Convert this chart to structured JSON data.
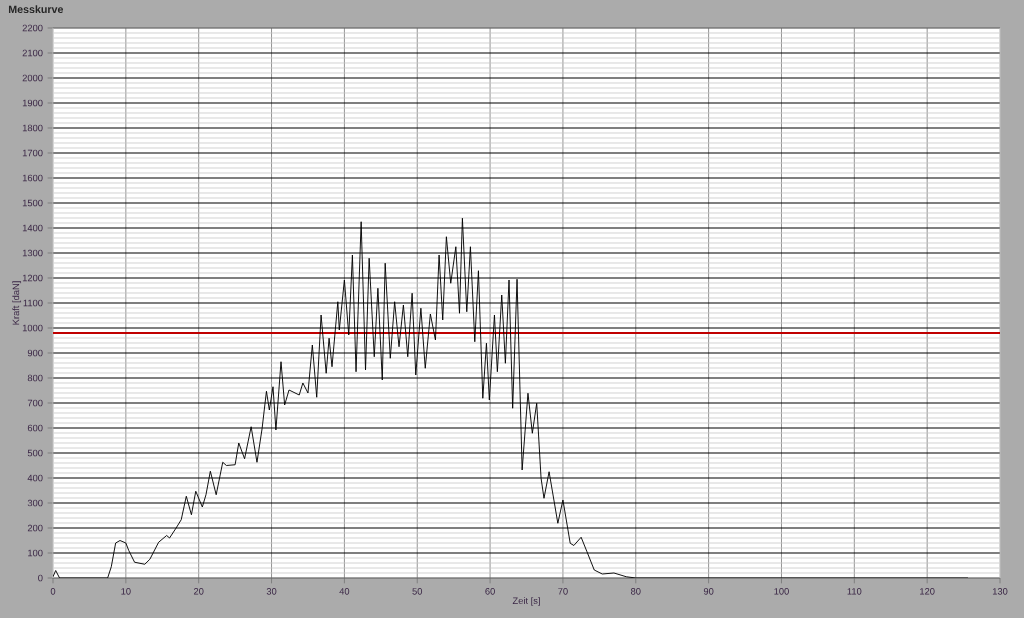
{
  "chart_data": {
    "type": "line",
    "title": "Messkurve",
    "xlabel": "Zeit [s]",
    "ylabel": "Kraft [daN]",
    "xlim": [
      0,
      130
    ],
    "ylim": [
      0,
      2200
    ],
    "xticks": [
      0,
      10,
      20,
      30,
      40,
      50,
      60,
      70,
      80,
      90,
      100,
      110,
      120,
      130
    ],
    "yticks": [
      0,
      100,
      200,
      300,
      400,
      500,
      600,
      700,
      800,
      900,
      1000,
      1100,
      1200,
      1300,
      1400,
      1500,
      1600,
      1700,
      1800,
      1900,
      2000,
      2100,
      2200
    ],
    "grid": true,
    "ref_lines": [
      {
        "axis": "y",
        "value": 980,
        "color": "#c00000"
      }
    ],
    "series": [
      {
        "color": "#000000",
        "x": [
          0,
          0.37,
          0.9,
          7.5,
          8.0,
          8.6,
          9.2,
          10,
          10.4,
          11.2,
          12.6,
          13.3,
          14.5,
          15.6,
          16,
          16.9,
          17.6,
          18.3,
          19,
          19.6,
          20.5,
          21,
          21.6,
          22.4,
          23.3,
          23.8,
          25,
          25.5,
          26.3,
          27.2,
          28,
          28.7,
          29.3,
          29.7,
          30.2,
          30.6,
          31.3,
          31.8,
          32.4,
          33.8,
          34.3,
          35,
          35.6,
          36.2,
          36.8,
          37.5,
          37.9,
          38.3,
          39.1,
          39.3,
          40,
          40.6,
          41.1,
          41.6,
          42.3,
          42.9,
          43.4,
          44.1,
          44.6,
          45.2,
          45.6,
          46.3,
          46.9,
          47.5,
          48.1,
          48.7,
          49.3,
          49.8,
          50.5,
          51.1,
          51.8,
          52.5,
          53,
          53.5,
          54,
          54.6,
          55.3,
          55.8,
          56.2,
          56.8,
          57.3,
          57.9,
          58.4,
          59,
          59.5,
          59.9,
          60.6,
          61,
          61.6,
          62.1,
          62.6,
          63.1,
          63.7,
          64.4,
          65.2,
          65.8,
          66.4,
          67,
          67.4,
          68.1,
          69.3,
          70,
          71,
          71.5,
          72.5,
          73.3,
          74.3,
          75.4,
          77,
          78.7,
          80,
          90,
          100,
          110,
          120,
          125.6
        ],
        "values": [
          5,
          30,
          0,
          0,
          45,
          140,
          150,
          140,
          110,
          63,
          55,
          75,
          143,
          170,
          160,
          200,
          233,
          327,
          253,
          347,
          284,
          333,
          427,
          333,
          463,
          450,
          453,
          540,
          477,
          605,
          463,
          597,
          747,
          672,
          765,
          592,
          865,
          692,
          752,
          732,
          780,
          740,
          932,
          723,
          1052,
          819,
          959,
          845,
          1105,
          992,
          1192,
          972,
          1292,
          825,
          1425,
          832,
          1279,
          885,
          1159,
          792,
          1259,
          879,
          1105,
          925,
          1092,
          885,
          1139,
          812,
          1079,
          839,
          1056,
          952,
          1292,
          1032,
          1365,
          1179,
          1325,
          1059,
          1439,
          1065,
          1325,
          945,
          1229,
          719,
          939,
          712,
          1052,
          825,
          1132,
          859,
          1192,
          679,
          1195,
          432,
          739,
          579,
          699,
          399,
          319,
          425,
          219,
          312,
          139,
          130,
          163,
          105,
          32,
          16,
          20,
          5,
          0,
          0,
          0,
          0,
          0,
          0
        ]
      }
    ]
  }
}
